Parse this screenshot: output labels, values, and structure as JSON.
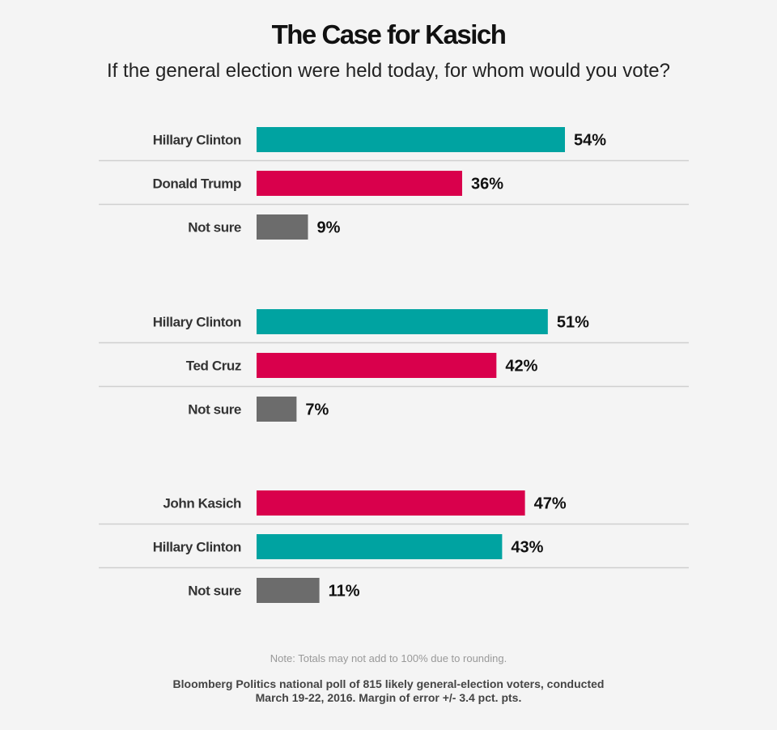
{
  "chart_data": {
    "type": "bar",
    "orientation": "horizontal",
    "title": "The Case for Kasich",
    "subtitle": "If the general election were held today, for whom would you vote?",
    "xlim": [
      0,
      60
    ],
    "grid": false,
    "groups": [
      {
        "bars": [
          {
            "name": "Hillary Clinton",
            "value": 54,
            "label": "54%",
            "color": "#00a3a1"
          },
          {
            "name": "Donald Trump",
            "value": 36,
            "label": "36%",
            "color": "#d9004c"
          },
          {
            "name": "Not sure",
            "value": 9,
            "label": "9%",
            "color": "#6c6c6c"
          }
        ]
      },
      {
        "bars": [
          {
            "name": "Hillary Clinton",
            "value": 51,
            "label": "51%",
            "color": "#00a3a1"
          },
          {
            "name": "Ted Cruz",
            "value": 42,
            "label": "42%",
            "color": "#d9004c"
          },
          {
            "name": "Not sure",
            "value": 7,
            "label": "7%",
            "color": "#6c6c6c"
          }
        ]
      },
      {
        "bars": [
          {
            "name": "John Kasich",
            "value": 47,
            "label": "47%",
            "color": "#d9004c"
          },
          {
            "name": "Hillary Clinton",
            "value": 43,
            "label": "43%",
            "color": "#00a3a1"
          },
          {
            "name": "Not sure",
            "value": 11,
            "label": "11%",
            "color": "#6c6c6c"
          }
        ]
      }
    ]
  },
  "footer": {
    "note": "Note: Totals may not add to 100% due to rounding.",
    "source_line1": "Bloomberg Politics national poll of 815 likely general-election voters, conducted",
    "source_line2": "March 19-22, 2016. Margin of error +/- 3.4 pct. pts."
  },
  "colors": {
    "clinton": "#00a3a1",
    "republican": "#d9004c",
    "not_sure": "#6c6c6c",
    "divider": "#cfcfcf"
  }
}
